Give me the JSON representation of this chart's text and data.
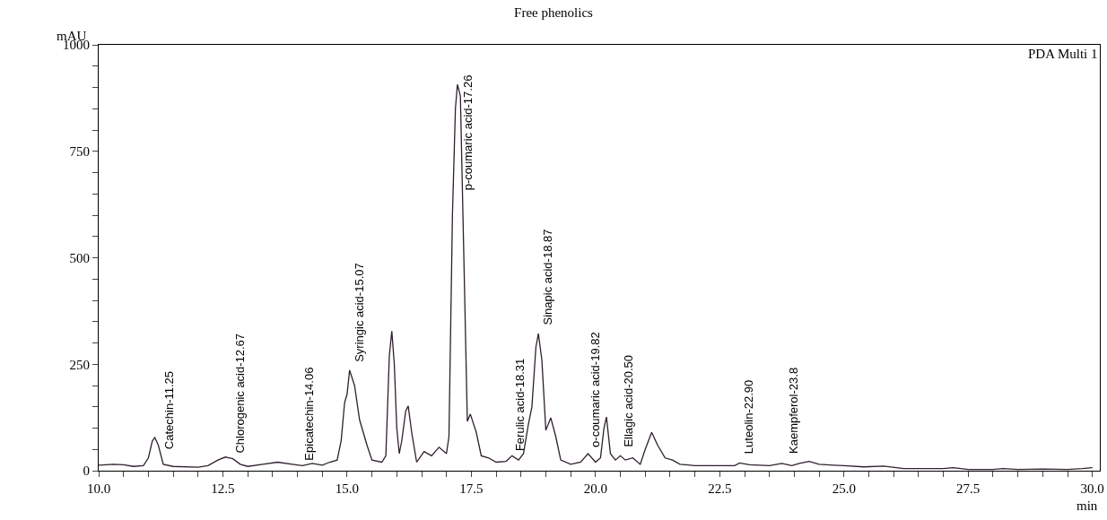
{
  "chart_data": {
    "type": "line",
    "title": "Free phenolics",
    "xlabel": "min",
    "ylabel": "mAU",
    "xlim": [
      10,
      30.15
    ],
    "ylim": [
      0,
      1000
    ],
    "xticks": [
      {
        "value": 10,
        "label": "10.0"
      },
      {
        "value": 10.5,
        "label": null
      },
      {
        "value": 11,
        "label": null
      },
      {
        "value": 11.5,
        "label": null
      },
      {
        "value": 12,
        "label": null
      },
      {
        "value": 12.5,
        "label": "12.5"
      },
      {
        "value": 13,
        "label": null
      },
      {
        "value": 13.5,
        "label": null
      },
      {
        "value": 14,
        "label": null
      },
      {
        "value": 14.5,
        "label": null
      },
      {
        "value": 15,
        "label": "15.0"
      },
      {
        "value": 15.5,
        "label": null
      },
      {
        "value": 16,
        "label": null
      },
      {
        "value": 16.5,
        "label": null
      },
      {
        "value": 17,
        "label": null
      },
      {
        "value": 17.5,
        "label": "17.5"
      },
      {
        "value": 18,
        "label": null
      },
      {
        "value": 18.5,
        "label": null
      },
      {
        "value": 19,
        "label": null
      },
      {
        "value": 19.5,
        "label": null
      },
      {
        "value": 20,
        "label": "20.0"
      },
      {
        "value": 20.5,
        "label": null
      },
      {
        "value": 21,
        "label": null
      },
      {
        "value": 21.5,
        "label": null
      },
      {
        "value": 22,
        "label": null
      },
      {
        "value": 22.5,
        "label": "22.5"
      },
      {
        "value": 23,
        "label": null
      },
      {
        "value": 23.5,
        "label": null
      },
      {
        "value": 24,
        "label": null
      },
      {
        "value": 24.5,
        "label": null
      },
      {
        "value": 25,
        "label": "25.0"
      },
      {
        "value": 25.5,
        "label": null
      },
      {
        "value": 26,
        "label": null
      },
      {
        "value": 26.5,
        "label": null
      },
      {
        "value": 27,
        "label": null
      },
      {
        "value": 27.5,
        "label": "27.5"
      },
      {
        "value": 28,
        "label": null
      },
      {
        "value": 28.5,
        "label": null
      },
      {
        "value": 29,
        "label": null
      },
      {
        "value": 29.5,
        "label": null
      },
      {
        "value": 30,
        "label": "30.0"
      }
    ],
    "yticks": [
      0,
      {
        "value": 50,
        "label": null
      },
      {
        "value": 100,
        "label": null
      },
      {
        "value": 150,
        "label": null
      },
      {
        "value": 200,
        "label": null
      },
      250,
      {
        "value": 300,
        "label": null
      },
      {
        "value": 350,
        "label": null
      },
      {
        "value": 400,
        "label": null
      },
      {
        "value": 450,
        "label": null
      },
      500,
      {
        "value": 550,
        "label": null
      },
      {
        "value": 600,
        "label": null
      },
      {
        "value": 650,
        "label": null
      },
      {
        "value": 700,
        "label": null
      },
      750,
      {
        "value": 800,
        "label": null
      },
      {
        "value": 850,
        "label": null
      },
      {
        "value": 900,
        "label": null
      },
      {
        "value": 950,
        "label": null
      },
      1000
    ],
    "grid": false,
    "marker": "none",
    "line_style": "solid",
    "series": [
      {
        "color": "#2e1f2e",
        "x": [
          10.0,
          10.3,
          10.5,
          10.7,
          10.9,
          11.0,
          11.08,
          11.13,
          11.2,
          11.3,
          11.5,
          12.0,
          12.2,
          12.4,
          12.55,
          12.7,
          12.85,
          13.0,
          13.3,
          13.6,
          13.9,
          14.1,
          14.3,
          14.5,
          14.65,
          14.8,
          14.88,
          14.95,
          15.0,
          15.05,
          15.15,
          15.25,
          15.4,
          15.5,
          15.7,
          15.78,
          15.85,
          15.9,
          15.95,
          16.0,
          16.05,
          16.1,
          16.18,
          16.23,
          16.3,
          16.4,
          16.55,
          16.7,
          16.85,
          17.0,
          17.05,
          17.12,
          17.18,
          17.22,
          17.28,
          17.35,
          17.42,
          17.48,
          17.6,
          17.7,
          17.85,
          18.0,
          18.2,
          18.32,
          18.45,
          18.55,
          18.65,
          18.72,
          18.8,
          18.85,
          18.92,
          19.0,
          19.1,
          19.2,
          19.3,
          19.5,
          19.7,
          19.85,
          20.0,
          20.1,
          20.17,
          20.22,
          20.3,
          20.4,
          20.5,
          20.6,
          20.75,
          20.9,
          21.0,
          21.13,
          21.25,
          21.4,
          21.55,
          21.7,
          22.0,
          22.5,
          22.8,
          22.9,
          23.1,
          23.5,
          23.75,
          23.95,
          24.1,
          24.3,
          24.5,
          24.8,
          25.0,
          25.4,
          25.8,
          26.2,
          27.0,
          27.2,
          27.5,
          28.0,
          28.2,
          28.5,
          29.0,
          29.5,
          29.8,
          30.0
        ],
        "values": [
          13,
          15,
          14,
          10,
          12,
          30,
          70,
          78,
          60,
          15,
          10,
          8,
          12,
          25,
          32,
          28,
          15,
          10,
          15,
          20,
          15,
          12,
          17,
          13,
          20,
          25,
          70,
          160,
          180,
          236,
          200,
          120,
          60,
          25,
          20,
          35,
          270,
          328,
          250,
          100,
          40,
          70,
          140,
          152,
          90,
          20,
          45,
          35,
          55,
          40,
          80,
          600,
          850,
          907,
          880,
          500,
          116,
          133,
          90,
          35,
          30,
          20,
          22,
          35,
          25,
          40,
          110,
          150,
          290,
          322,
          260,
          95,
          124,
          80,
          25,
          15,
          20,
          40,
          20,
          30,
          100,
          126,
          40,
          25,
          35,
          25,
          30,
          15,
          50,
          90,
          60,
          30,
          25,
          15,
          12,
          12,
          12,
          18,
          14,
          12,
          17,
          12,
          17,
          22,
          15,
          13,
          12,
          9,
          11,
          5,
          5,
          7,
          3,
          3,
          5,
          3,
          4,
          3,
          5,
          7
        ]
      }
    ],
    "annotations": [
      "PDA Multi 1",
      {
        "text": "Catechin-11.25",
        "x": 11.25,
        "y": 38
      },
      {
        "text": "Chlorogenic acid-12.67",
        "x": 12.67,
        "y": 29
      },
      {
        "text": "Epicatechin-14.06",
        "x": 14.06,
        "y": 12
      },
      {
        "text": "Syringic acid-15.07",
        "x": 15.07,
        "y": 242
      },
      {
        "text": "p-coumaric acid-17.26",
        "x": 17.26,
        "y": 646
      },
      {
        "text": "Ferulic acid-18.31",
        "x": 18.31,
        "y": 34
      },
      {
        "text": "Sinapic acid-18.87",
        "x": 18.87,
        "y": 330
      },
      {
        "text": "o-coumaric acid-19.82",
        "x": 19.82,
        "y": 42
      },
      {
        "text": "Ellagic acid-20.50",
        "x": 20.5,
        "y": 42
      },
      {
        "text": "Luteolin-22.90",
        "x": 22.9,
        "y": 27
      },
      {
        "text": "Kaempferol-23.8",
        "x": 23.8,
        "y": 27
      }
    ]
  }
}
